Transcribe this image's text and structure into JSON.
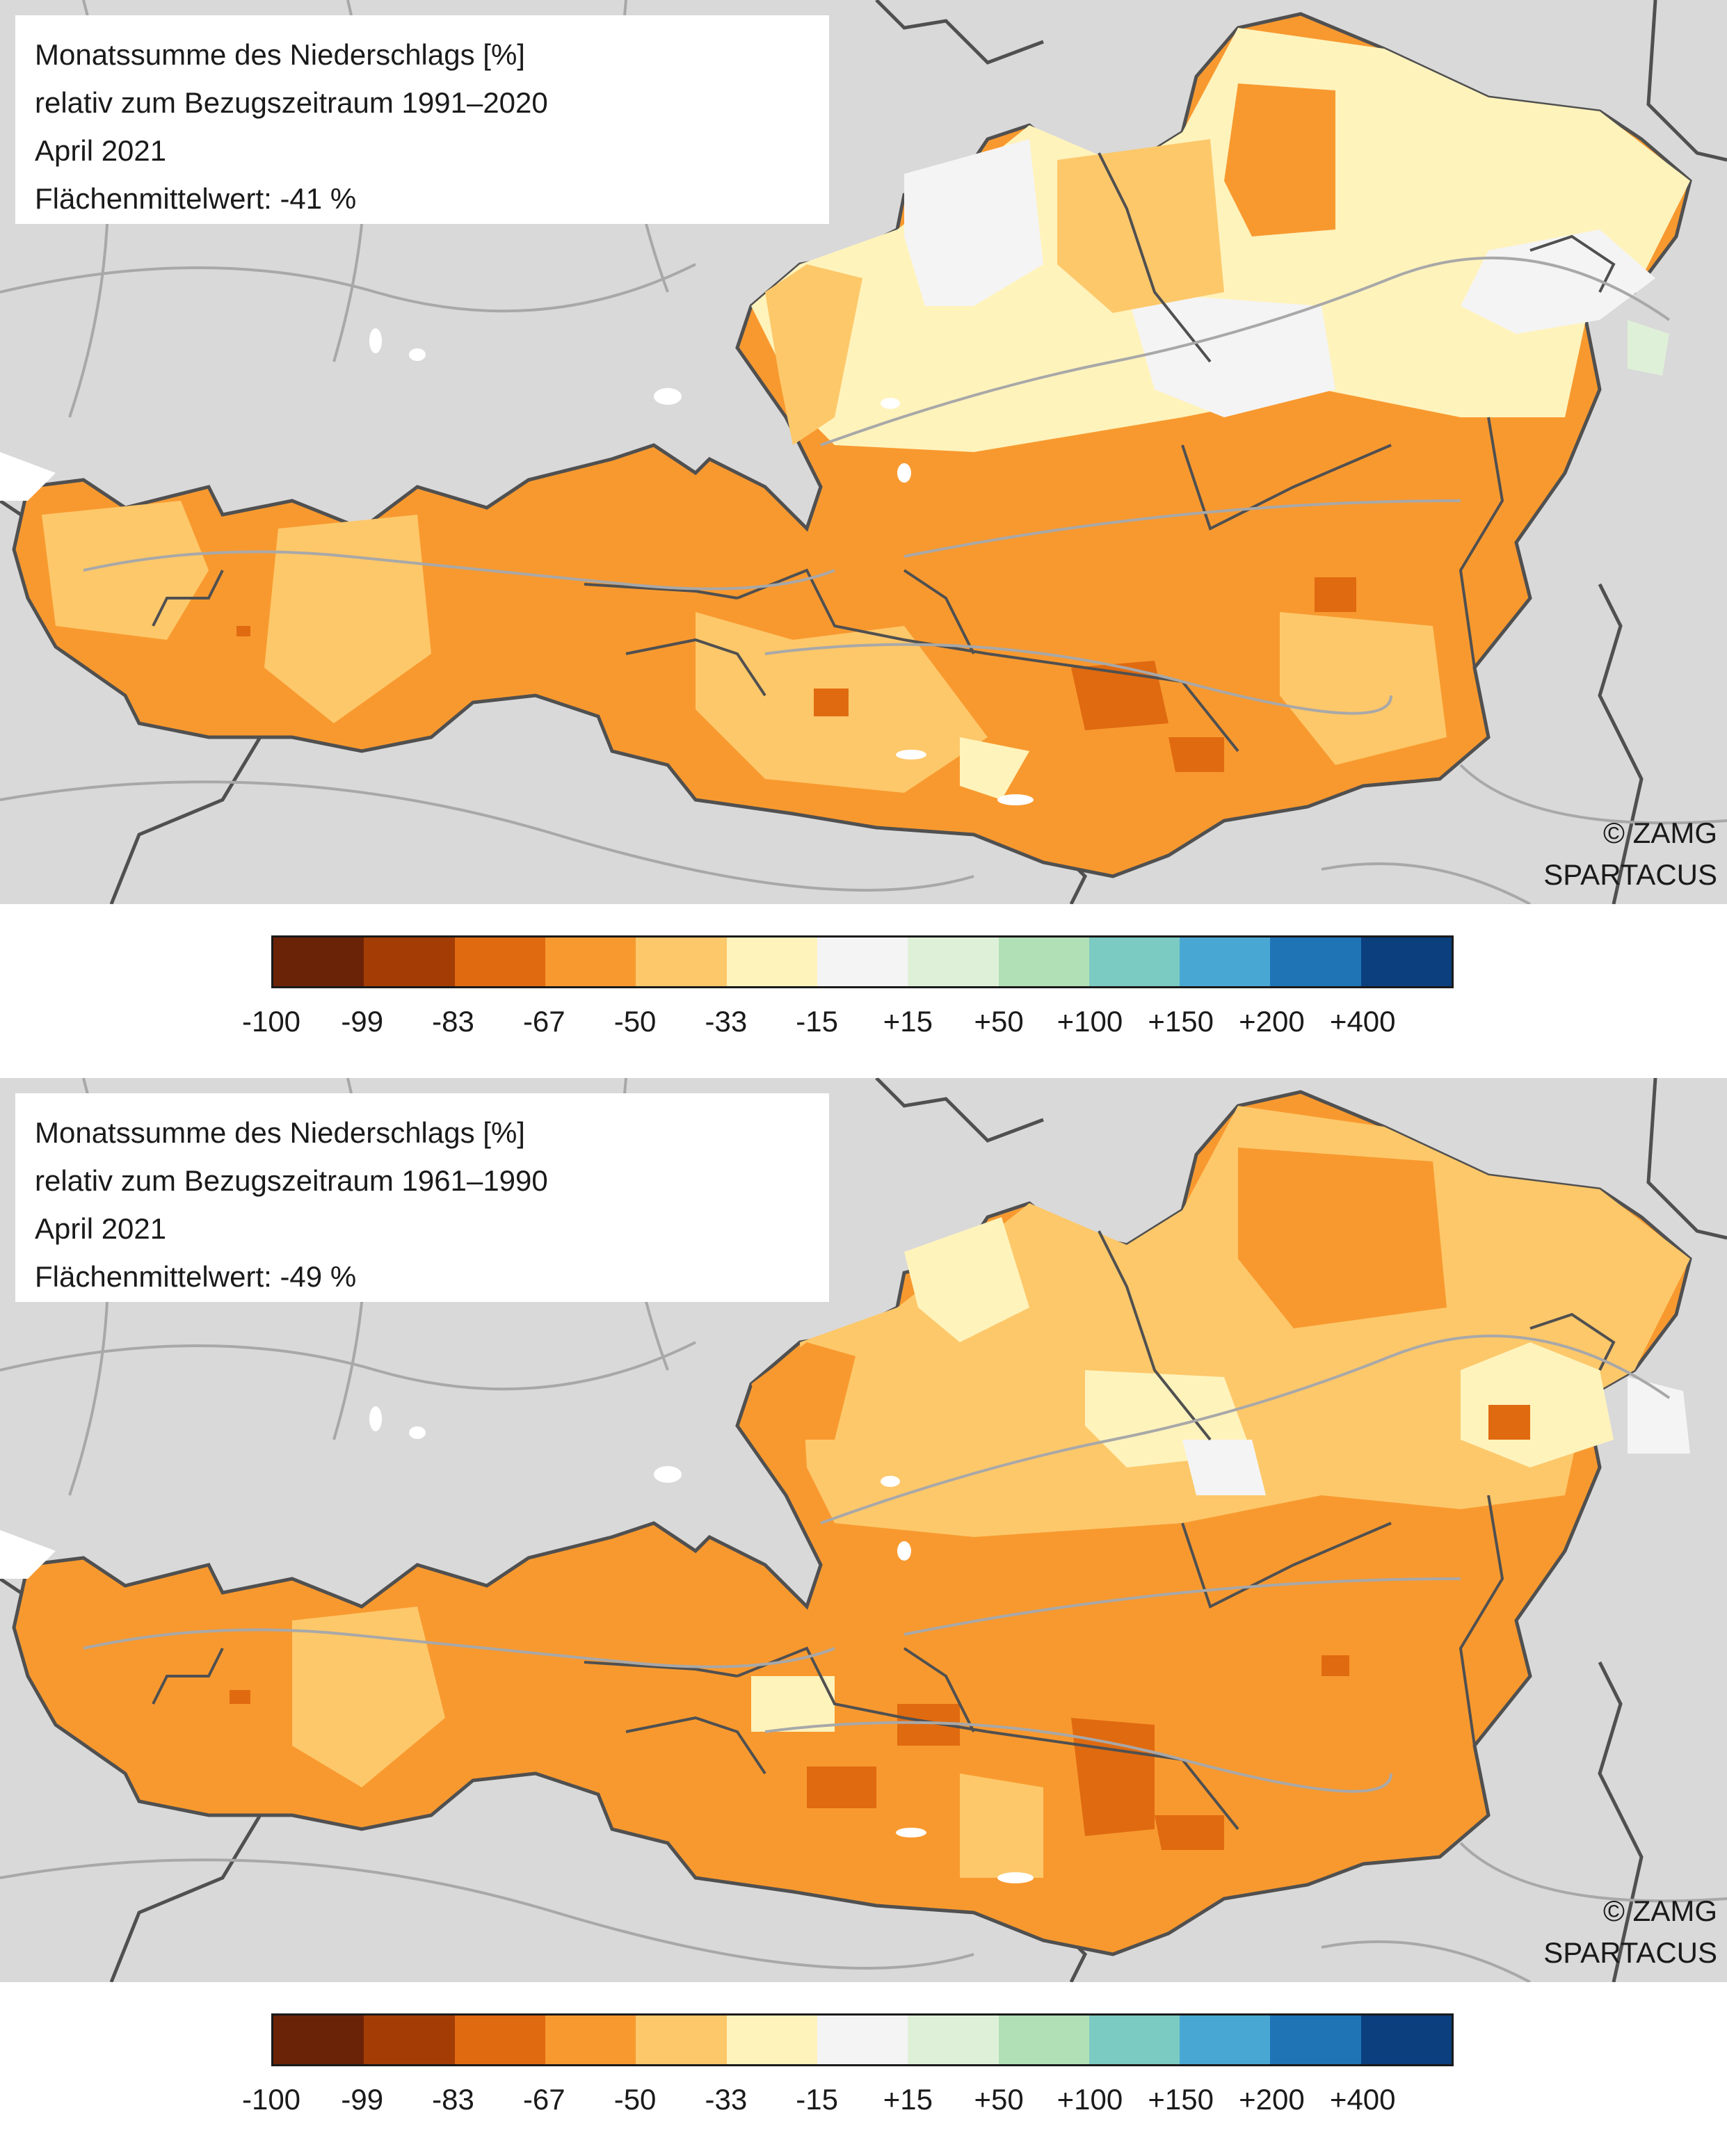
{
  "panels": [
    {
      "title_lines": [
        "Monatssumme des Niederschlags [%]",
        "relativ zum Bezugszeitraum 1991–2020",
        "April 2021",
        "Flächenmittelwert: -41 %"
      ],
      "mean_value": -41,
      "reference_period": "1991–2020",
      "credit_lines": [
        "© ZAMG",
        "SPARTACUS"
      ]
    },
    {
      "title_lines": [
        "Monatssumme des Niederschlags [%]",
        "relativ zum Bezugszeitraum 1961–1990",
        "April 2021",
        "Flächenmittelwert: -49 %"
      ],
      "mean_value": -49,
      "reference_period": "1961–1990",
      "credit_lines": [
        "© ZAMG",
        "SPARTACUS"
      ]
    }
  ],
  "legend": {
    "tick_labels": [
      "-100",
      "-99",
      "-83",
      "-67",
      "-50",
      "-33",
      "-15",
      "+15",
      "+50",
      "+100",
      "+150",
      "+200",
      "+400"
    ],
    "colors": [
      "#6b2308",
      "#a33d05",
      "#e06a10",
      "#f8992f",
      "#fdc86a",
      "#fff3bc",
      "#f4f4f4",
      "#dff0d8",
      "#b2e0b6",
      "#7ccbc3",
      "#49a8d3",
      "#1f74b6",
      "#0b3f7e"
    ]
  },
  "colors": {
    "background_land": "#d9d9d9",
    "borders": "#505050",
    "rivers": "#a8a8a8",
    "lakes": "#ffffff"
  }
}
